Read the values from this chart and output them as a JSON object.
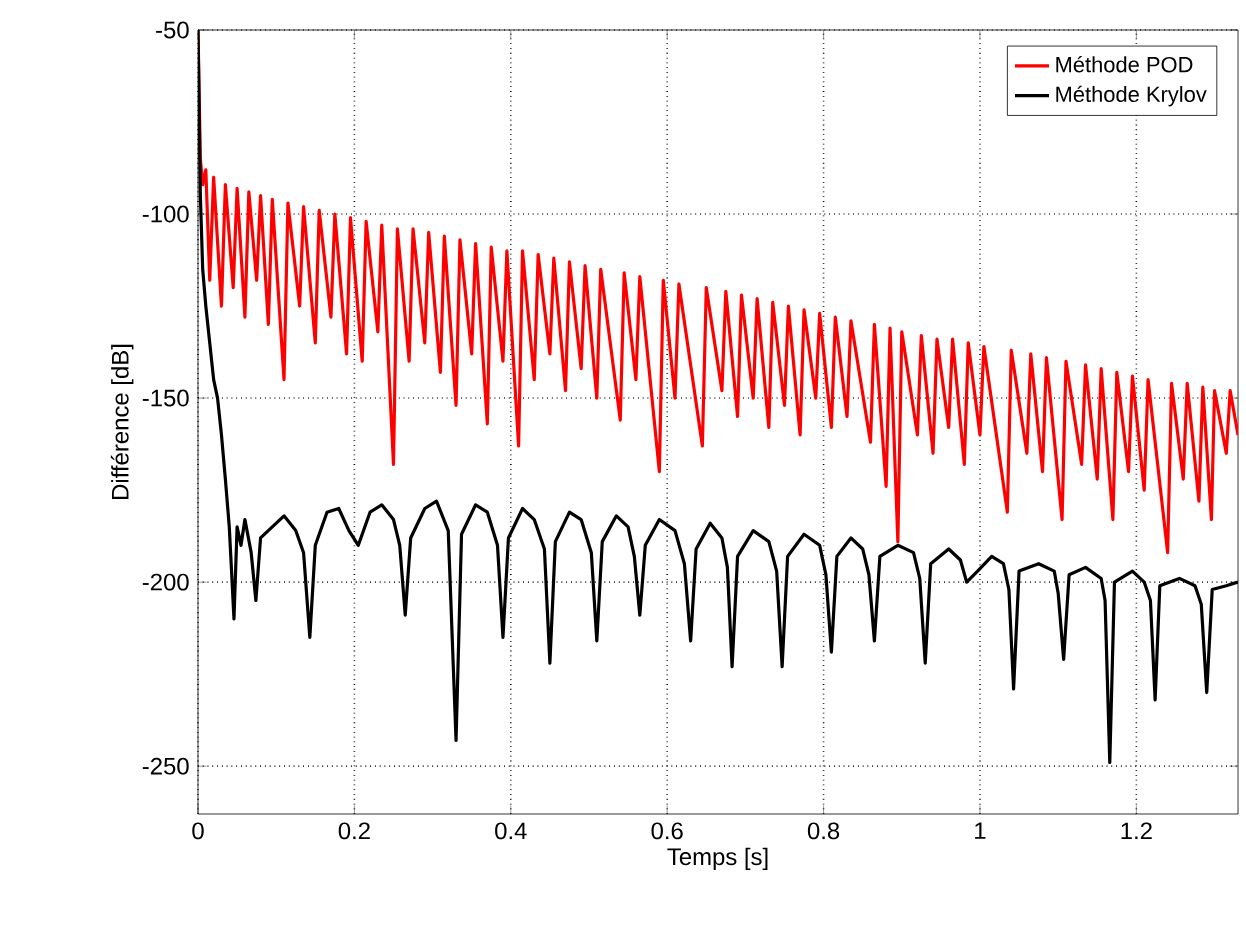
{
  "chart_data": {
    "type": "line",
    "xlabel": "Temps [s]",
    "ylabel": "Différence [dB]",
    "xlim": [
      0,
      1.33
    ],
    "ylim": [
      -263,
      -50
    ],
    "xticks": [
      0,
      0.2,
      0.4,
      0.6,
      0.8,
      1,
      1.2
    ],
    "yticks": [
      -50,
      -100,
      -150,
      -200,
      -250
    ],
    "grid": true,
    "legend": "top right",
    "marker": "none",
    "line_style": "solid",
    "series": [
      {
        "name": "Méthode POD",
        "color": "#ff0000",
        "x": [
          0,
          0.003,
          0.006,
          0.01,
          0.015,
          0.02,
          0.03,
          0.035,
          0.045,
          0.05,
          0.06,
          0.065,
          0.075,
          0.08,
          0.09,
          0.095,
          0.11,
          0.115,
          0.13,
          0.135,
          0.15,
          0.155,
          0.17,
          0.175,
          0.19,
          0.195,
          0.21,
          0.215,
          0.23,
          0.235,
          0.25,
          0.255,
          0.27,
          0.275,
          0.29,
          0.295,
          0.31,
          0.315,
          0.33,
          0.335,
          0.35,
          0.355,
          0.37,
          0.375,
          0.39,
          0.395,
          0.41,
          0.415,
          0.43,
          0.435,
          0.45,
          0.455,
          0.47,
          0.475,
          0.49,
          0.495,
          0.51,
          0.515,
          0.54,
          0.545,
          0.56,
          0.565,
          0.59,
          0.595,
          0.61,
          0.615,
          0.645,
          0.65,
          0.67,
          0.675,
          0.69,
          0.695,
          0.71,
          0.715,
          0.73,
          0.735,
          0.75,
          0.755,
          0.77,
          0.775,
          0.79,
          0.795,
          0.81,
          0.815,
          0.83,
          0.835,
          0.86,
          0.865,
          0.88,
          0.885,
          0.895,
          0.9,
          0.92,
          0.925,
          0.94,
          0.945,
          0.96,
          0.965,
          0.98,
          0.985,
          1.0,
          1.005,
          1.035,
          1.04,
          1.06,
          1.065,
          1.08,
          1.085,
          1.105,
          1.11,
          1.13,
          1.135,
          1.15,
          1.155,
          1.17,
          1.175,
          1.19,
          1.195,
          1.21,
          1.215,
          1.24,
          1.245,
          1.26,
          1.265,
          1.28,
          1.285,
          1.296,
          1.3,
          1.315,
          1.32,
          1.33
        ],
        "values": [
          -50,
          -85,
          -92,
          -88,
          -118,
          -90,
          -125,
          -92,
          -120,
          -93,
          -128,
          -94,
          -118,
          -95,
          -130,
          -96,
          -145,
          -97,
          -125,
          -98,
          -135,
          -99,
          -128,
          -100,
          -138,
          -101,
          -140,
          -102,
          -132,
          -103,
          -168,
          -104,
          -140,
          -104,
          -135,
          -105,
          -143,
          -106,
          -152,
          -107,
          -138,
          -108,
          -157,
          -109,
          -140,
          -110,
          -163,
          -110,
          -145,
          -111,
          -138,
          -112,
          -148,
          -113,
          -142,
          -114,
          -150,
          -115,
          -156,
          -116,
          -145,
          -117,
          -170,
          -118,
          -150,
          -119,
          -163,
          -120,
          -148,
          -121,
          -155,
          -122,
          -150,
          -123,
          -158,
          -124,
          -152,
          -125,
          -160,
          -126,
          -150,
          -127,
          -158,
          -128,
          -155,
          -129,
          -162,
          -130,
          -174,
          -131,
          -189,
          -132,
          -160,
          -133,
          -165,
          -134,
          -158,
          -134,
          -168,
          -135,
          -160,
          -136,
          -181,
          -137,
          -165,
          -138,
          -170,
          -139,
          -183,
          -140,
          -168,
          -141,
          -172,
          -142,
          -183,
          -143,
          -170,
          -144,
          -175,
          -145,
          -192,
          -146,
          -172,
          -146,
          -178,
          -147,
          -183,
          -148,
          -165,
          -148,
          -160
        ]
      },
      {
        "name": "Méthode Krylov",
        "color": "#000000",
        "x": [
          0,
          0.003,
          0.006,
          0.01,
          0.015,
          0.02,
          0.025,
          0.03,
          0.035,
          0.04,
          0.046,
          0.05,
          0.055,
          0.06,
          0.068,
          0.074,
          0.08,
          0.095,
          0.11,
          0.125,
          0.135,
          0.143,
          0.15,
          0.165,
          0.18,
          0.193,
          0.2,
          0.205,
          0.22,
          0.235,
          0.25,
          0.258,
          0.265,
          0.272,
          0.29,
          0.305,
          0.32,
          0.33,
          0.337,
          0.355,
          0.37,
          0.383,
          0.39,
          0.397,
          0.415,
          0.43,
          0.443,
          0.45,
          0.457,
          0.475,
          0.49,
          0.503,
          0.51,
          0.517,
          0.535,
          0.55,
          0.558,
          0.565,
          0.572,
          0.59,
          0.61,
          0.622,
          0.63,
          0.637,
          0.655,
          0.67,
          0.677,
          0.683,
          0.69,
          0.71,
          0.73,
          0.74,
          0.747,
          0.754,
          0.775,
          0.795,
          0.803,
          0.81,
          0.817,
          0.835,
          0.85,
          0.858,
          0.865,
          0.872,
          0.895,
          0.915,
          0.923,
          0.93,
          0.937,
          0.96,
          0.975,
          0.983,
          0.99,
          0.997,
          1.015,
          1.03,
          1.037,
          1.043,
          1.05,
          1.075,
          1.095,
          1.1,
          1.107,
          1.114,
          1.135,
          1.155,
          1.16,
          1.166,
          1.172,
          1.195,
          1.21,
          1.218,
          1.224,
          1.23,
          1.255,
          1.275,
          1.283,
          1.29,
          1.297,
          1.315,
          1.33
        ],
        "values": [
          -50,
          -95,
          -115,
          -125,
          -135,
          -145,
          -150,
          -160,
          -172,
          -185,
          -210,
          -185,
          -190,
          -183,
          -192,
          -205,
          -188,
          -185,
          -182,
          -186,
          -192,
          -215,
          -190,
          -181,
          -180,
          -186,
          null,
          -190,
          -181,
          -179,
          -183,
          -190,
          -209,
          -188,
          -180,
          -178,
          -186,
          -243,
          -187,
          -179,
          -181,
          -190,
          -215,
          -188,
          -180,
          -183,
          -191,
          -222,
          -189,
          -181,
          -183,
          -192,
          -216,
          -189,
          -182,
          -185,
          -193,
          -209,
          -190,
          -183,
          -186,
          -195,
          -216,
          -191,
          -184,
          -188,
          -196,
          -223,
          -193,
          -186,
          -189,
          -197,
          -223,
          -193,
          -187,
          -190,
          -198,
          -219,
          -193,
          -188,
          -191,
          -198,
          -216,
          -193,
          -190,
          -192,
          -199,
          -222,
          -195,
          -191,
          -194,
          -200,
          null,
          -197,
          -193,
          -195,
          -202,
          -229,
          -197,
          -195,
          -197,
          -203,
          -221,
          -198,
          -196,
          -199,
          -205,
          -249,
          -200,
          -197,
          -200,
          -205,
          -232,
          -201,
          -199,
          -201,
          -206,
          -230,
          -202,
          -201,
          -200
        ]
      }
    ]
  }
}
